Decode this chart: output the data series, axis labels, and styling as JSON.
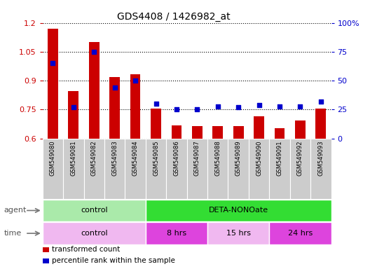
{
  "title": "GDS4408 / 1426982_at",
  "samples": [
    "GSM549080",
    "GSM549081",
    "GSM549082",
    "GSM549083",
    "GSM549084",
    "GSM549085",
    "GSM549086",
    "GSM549087",
    "GSM549088",
    "GSM549089",
    "GSM549090",
    "GSM549091",
    "GSM549092",
    "GSM549093"
  ],
  "bar_values": [
    1.17,
    0.845,
    1.1,
    0.92,
    0.935,
    0.755,
    0.668,
    0.664,
    0.663,
    0.664,
    0.715,
    0.655,
    0.695,
    0.755
  ],
  "dot_values": [
    65,
    27,
    75,
    44,
    50,
    30,
    25,
    25,
    28,
    27,
    29,
    28,
    28,
    32
  ],
  "ylim_left": [
    0.6,
    1.2
  ],
  "ylim_right": [
    0,
    100
  ],
  "yticks_left": [
    0.6,
    0.75,
    0.9,
    1.05,
    1.2
  ],
  "yticks_right": [
    0,
    25,
    50,
    75,
    100
  ],
  "ytick_labels_left": [
    "0.6",
    "0.75",
    "0.9",
    "1.05",
    "1.2"
  ],
  "ytick_labels_right": [
    "0",
    "25",
    "50",
    "75",
    "100%"
  ],
  "bar_color": "#cc0000",
  "dot_color": "#0000cc",
  "grid_color": "#000000",
  "bg_color": "#ffffff",
  "tick_bg_color": "#cccccc",
  "agent_row": [
    {
      "label": "control",
      "start": 0,
      "end": 5,
      "color": "#aaeaaa"
    },
    {
      "label": "DETA-NONOate",
      "start": 5,
      "end": 14,
      "color": "#33dd33"
    }
  ],
  "time_row": [
    {
      "label": "control",
      "start": 0,
      "end": 5,
      "color": "#f0b8f0"
    },
    {
      "label": "8 hrs",
      "start": 5,
      "end": 8,
      "color": "#dd44dd"
    },
    {
      "label": "15 hrs",
      "start": 8,
      "end": 11,
      "color": "#f0b8f0"
    },
    {
      "label": "24 hrs",
      "start": 11,
      "end": 14,
      "color": "#dd44dd"
    }
  ],
  "legend_items": [
    {
      "label": "transformed count",
      "color": "#cc0000"
    },
    {
      "label": "percentile rank within the sample",
      "color": "#0000cc"
    }
  ],
  "xlabel_agent": "agent",
  "xlabel_time": "time"
}
